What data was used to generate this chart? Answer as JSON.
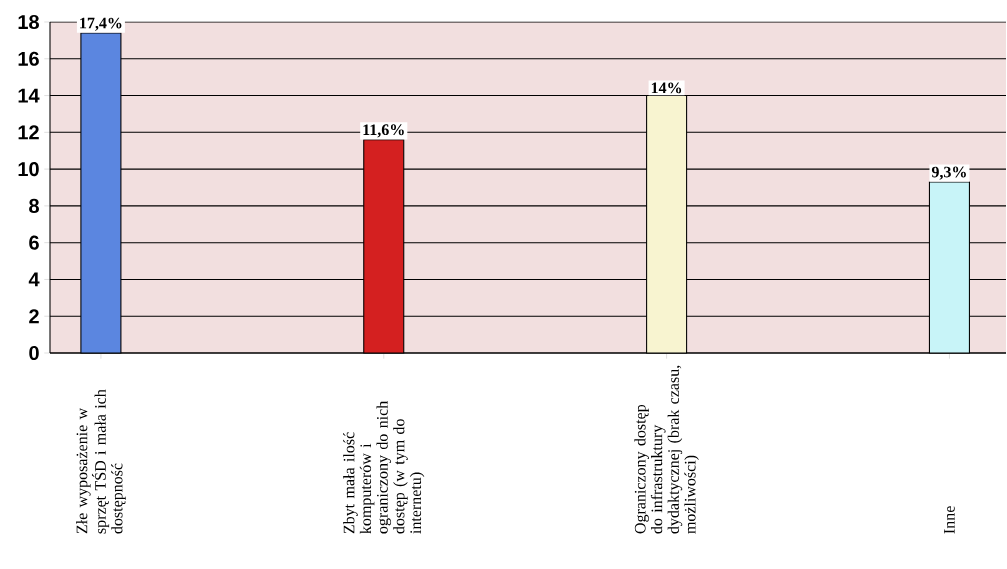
{
  "chart_data": {
    "type": "bar",
    "categories": [
      "Złe wyposażenie w sprzęt TŚD i mała ich dostępność",
      "Zbyt mała ilość komputerów i ograniczony do nich dostęp (w tym do internetu)",
      "Ograniczony dostęp do infrastruktury dydaktycznej (brak czasu, możliwości)",
      "Inne"
    ],
    "values": [
      17.4,
      11.6,
      14,
      9.3
    ],
    "colors": [
      "#5b86e0",
      "#d42020",
      "#f8f4d0",
      "#c8f4f8"
    ],
    "value_labels": [
      "17,4%",
      "11,6%",
      "14%",
      "9,3%"
    ],
    "ylim": [
      0,
      18
    ],
    "yticks": [
      0,
      2,
      4,
      6,
      8,
      10,
      12,
      14,
      16,
      18
    ],
    "grid": "y"
  }
}
